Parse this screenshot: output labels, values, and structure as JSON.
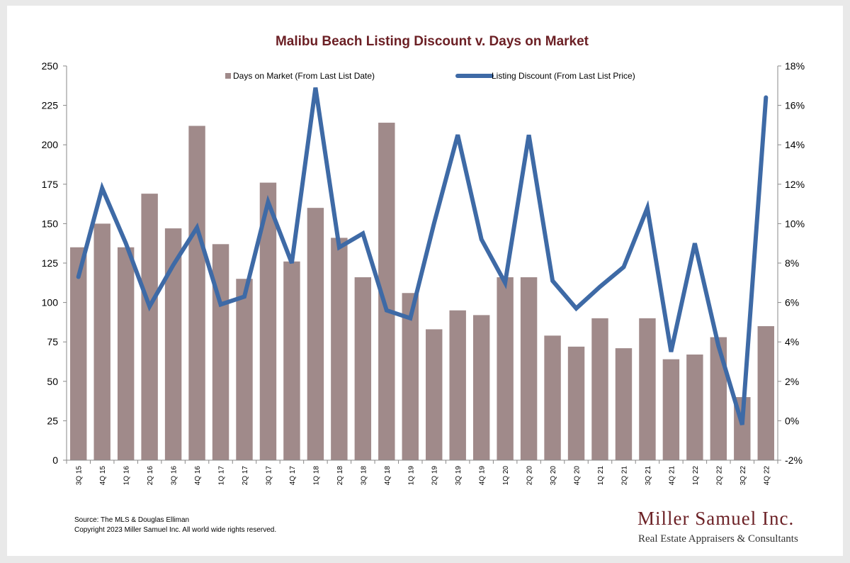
{
  "chart_data": {
    "type": "bar",
    "title": "Malibu Beach Listing Discount v. Days on Market",
    "categories": [
      "3Q 15",
      "4Q 15",
      "1Q 16",
      "2Q 16",
      "3Q 16",
      "4Q 16",
      "1Q 17",
      "2Q 17",
      "3Q 17",
      "4Q 17",
      "1Q 18",
      "2Q 18",
      "3Q 18",
      "4Q 18",
      "1Q 19",
      "2Q 19",
      "3Q 19",
      "4Q 19",
      "1Q 20",
      "2Q 20",
      "3Q 20",
      "4Q 20",
      "1Q 21",
      "2Q 21",
      "3Q 21",
      "4Q 21",
      "1Q 22",
      "2Q 22",
      "3Q 22",
      "4Q 22"
    ],
    "series": [
      {
        "name": "Days on Market (From Last List Date)",
        "type": "bar",
        "axis": "left",
        "color": "#a08a8a",
        "values": [
          135,
          150,
          135,
          169,
          147,
          212,
          137,
          115,
          176,
          126,
          160,
          141,
          116,
          214,
          106,
          83,
          95,
          92,
          116,
          116,
          79,
          72,
          90,
          71,
          90,
          64,
          67,
          78,
          40,
          85
        ]
      },
      {
        "name": "Listing Discount (From Last List Price)",
        "type": "line",
        "axis": "right",
        "color": "#3e6aa6",
        "values": [
          7.3,
          11.8,
          9.0,
          5.8,
          7.9,
          9.8,
          5.9,
          6.3,
          11.1,
          8.0,
          16.9,
          8.8,
          9.5,
          5.6,
          5.2,
          10.0,
          14.5,
          9.2,
          7.0,
          14.5,
          7.1,
          5.7,
          6.8,
          7.8,
          10.8,
          3.5,
          9.0,
          3.8,
          -0.2,
          16.4
        ]
      }
    ],
    "y_left": {
      "min": 0,
      "max": 250,
      "ticks": [
        "0",
        "25",
        "50",
        "75",
        "100",
        "125",
        "150",
        "175",
        "200",
        "225",
        "250"
      ]
    },
    "y_right": {
      "min": -2,
      "max": 18,
      "ticks": [
        "-2%",
        "0%",
        "2%",
        "4%",
        "6%",
        "8%",
        "10%",
        "12%",
        "14%",
        "16%",
        "18%"
      ]
    },
    "grid": false,
    "legend_placement": "top-center"
  },
  "footer": {
    "source": "Source: The MLS & Douglas Elliman",
    "copyright": "Copyright 2023 Miller Samuel Inc.  All world wide rights reserved."
  },
  "brand": {
    "name": "Miller Samuel Inc.",
    "tagline": "Real Estate Appraisers & Consultants",
    "color": "#6b1f24"
  }
}
